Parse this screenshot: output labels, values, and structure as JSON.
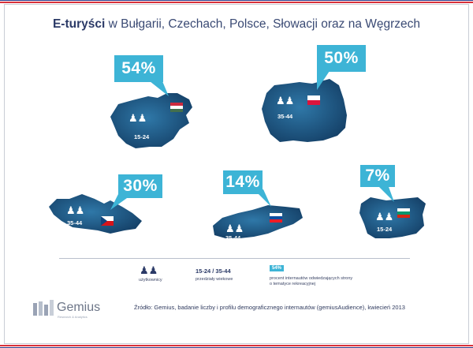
{
  "title": {
    "bold": "E-turyści",
    "rest": " w Bułgarii, Czechach, Polsce, Słowacji oraz na Węgrzech"
  },
  "countries": [
    {
      "name": "Hungary",
      "percent": "54%",
      "age": "15-24"
    },
    {
      "name": "Poland",
      "percent": "50%",
      "age": "35-44"
    },
    {
      "name": "Czech Republic",
      "percent": "30%",
      "age": "35-44"
    },
    {
      "name": "Slovakia",
      "percent": "14%",
      "age": "35-44"
    },
    {
      "name": "Bulgaria",
      "percent": "7%",
      "age": "15-24"
    }
  ],
  "legend": {
    "users_label": "użytkownicy",
    "age_value": "15-24 / 35-44",
    "age_label": "przedziały wiekowe",
    "pct_chip": "54%",
    "pct_label_1": "procent internautów odwiedzających strony",
    "pct_label_2": "o tematyce rekreacyjnej"
  },
  "source": "Źródło: Gemius, badanie liczby i profilu demograficznego internautów (gemiusAudience), kwiecień 2013",
  "logo": {
    "name": "Gemius",
    "tagline": "Research & Analytics"
  },
  "colors": {
    "map": "#1f5c8a",
    "bubble": "#3db4d6",
    "title": "#2b3a67",
    "band_red": "#d8313b",
    "band_blue": "#2b3a8a"
  }
}
